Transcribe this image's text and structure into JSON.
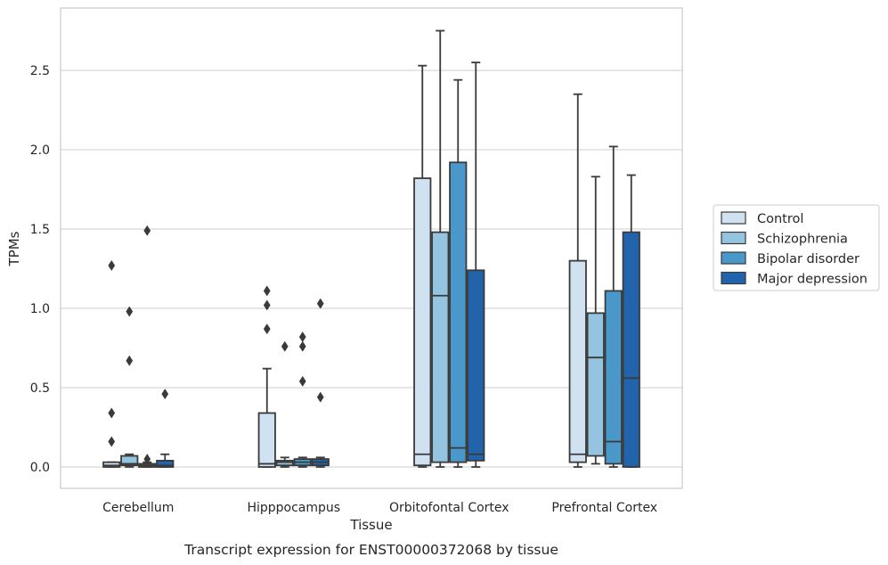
{
  "chart_data": {
    "type": "boxplot",
    "xlabel": "Tissue",
    "ylabel": "TPMs",
    "caption": "Transcript expression for ENST00000372068 by tissue",
    "categories": [
      "Cerebellum",
      "Hipppocampus",
      "Orbitofontal Cortex",
      "Prefrontal Cortex"
    ],
    "ylim": [
      -0.13,
      2.89
    ],
    "yticks": [
      0.0,
      0.5,
      1.0,
      1.5,
      2.0,
      2.5
    ],
    "ytick_labels": [
      "0.0",
      "0.5",
      "1.0",
      "1.5",
      "2.0",
      "2.5"
    ],
    "grid": "horizontal",
    "legend_position": "right",
    "series": [
      {
        "name": "Control",
        "color": "#d0e1f2",
        "boxes": [
          {
            "whislo": 0.0,
            "q1": 0.0,
            "med": 0.01,
            "q3": 0.03,
            "whishi": 0.03,
            "fliers": [
              1.27,
              0.34,
              0.16
            ]
          },
          {
            "whislo": 0.0,
            "q1": 0.0,
            "med": 0.02,
            "q3": 0.34,
            "whishi": 0.62,
            "fliers": [
              1.11,
              1.02,
              0.87
            ]
          },
          {
            "whislo": 0.0,
            "q1": 0.01,
            "med": 0.08,
            "q3": 1.82,
            "whishi": 2.53,
            "fliers": []
          },
          {
            "whislo": 0.0,
            "q1": 0.03,
            "med": 0.08,
            "q3": 1.3,
            "whishi": 2.35,
            "fliers": []
          }
        ]
      },
      {
        "name": "Schizophrenia",
        "color": "#94c4df",
        "boxes": [
          {
            "whislo": 0.0,
            "q1": 0.01,
            "med": 0.02,
            "q3": 0.07,
            "whishi": 0.08,
            "fliers": [
              0.98,
              0.67
            ]
          },
          {
            "whislo": 0.0,
            "q1": 0.01,
            "med": 0.03,
            "q3": 0.04,
            "whishi": 0.06,
            "fliers": [
              0.76
            ]
          },
          {
            "whislo": 0.0,
            "q1": 0.03,
            "med": 1.08,
            "q3": 1.48,
            "whishi": 2.75,
            "fliers": []
          },
          {
            "whislo": 0.02,
            "q1": 0.07,
            "med": 0.69,
            "q3": 0.97,
            "whishi": 1.83,
            "fliers": []
          }
        ]
      },
      {
        "name": "Bipolar disorder",
        "color": "#4a98c9",
        "boxes": [
          {
            "whislo": 0.0,
            "q1": 0.0,
            "med": 0.01,
            "q3": 0.02,
            "whishi": 0.03,
            "fliers": [
              1.49,
              0.05
            ]
          },
          {
            "whislo": 0.0,
            "q1": 0.01,
            "med": 0.03,
            "q3": 0.05,
            "whishi": 0.06,
            "fliers": [
              0.82,
              0.76,
              0.54
            ]
          },
          {
            "whislo": 0.0,
            "q1": 0.03,
            "med": 0.12,
            "q3": 1.92,
            "whishi": 2.44,
            "fliers": []
          },
          {
            "whislo": 0.0,
            "q1": 0.02,
            "med": 0.16,
            "q3": 1.11,
            "whishi": 2.02,
            "fliers": []
          }
        ]
      },
      {
        "name": "Major depression",
        "color": "#2164ab",
        "boxes": [
          {
            "whislo": 0.0,
            "q1": 0.0,
            "med": 0.01,
            "q3": 0.04,
            "whishi": 0.08,
            "fliers": [
              0.46
            ]
          },
          {
            "whislo": 0.0,
            "q1": 0.01,
            "med": 0.03,
            "q3": 0.05,
            "whishi": 0.06,
            "fliers": [
              1.03,
              0.44
            ]
          },
          {
            "whislo": 0.0,
            "q1": 0.04,
            "med": 0.08,
            "q3": 1.24,
            "whishi": 2.55,
            "fliers": []
          },
          {
            "whislo": 0.0,
            "q1": 0.0,
            "med": 0.56,
            "q3": 1.48,
            "whishi": 1.84,
            "fliers": []
          }
        ]
      }
    ]
  }
}
